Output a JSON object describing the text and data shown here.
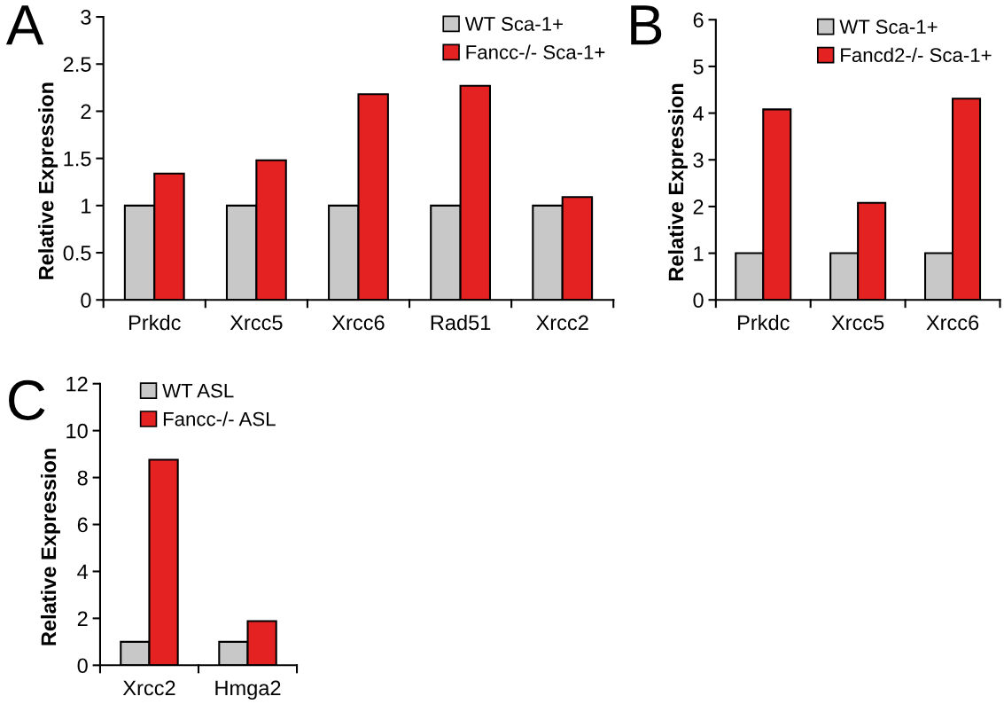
{
  "chart_data": [
    {
      "type": "bar",
      "ylabel": "Relative Expression",
      "annotations": [
        "A"
      ],
      "categories": [
        "Prkdc",
        "Xrcc5",
        "Xrcc6",
        "Rad51",
        "Xrcc2"
      ],
      "series": [
        {
          "name": "WT Sca-1+",
          "color": "#c8c8c8",
          "values": [
            1,
            1,
            1,
            1,
            1
          ]
        },
        {
          "name": "Fancc-/- Sca-1+",
          "color": "#e52222",
          "values": [
            1.34,
            1.48,
            2.18,
            2.27,
            1.09
          ]
        }
      ],
      "ylim": [
        0,
        3
      ],
      "yticks": [
        0,
        0.5,
        1,
        1.5,
        2,
        2.5,
        3
      ],
      "legend": "top right"
    },
    {
      "type": "bar",
      "ylabel": "Relative Expression",
      "annotations": [
        "B"
      ],
      "categories": [
        "Prkdc",
        "Xrcc5",
        "Xrcc6"
      ],
      "series": [
        {
          "name": "WT Sca-1+",
          "color": "#c8c8c8",
          "values": [
            1,
            1,
            1
          ]
        },
        {
          "name": "Fancd2-/- Sca-1+",
          "color": "#e52222",
          "values": [
            4.08,
            2.08,
            4.31
          ]
        }
      ],
      "ylim": [
        0,
        6
      ],
      "yticks": [
        0,
        1,
        2,
        3,
        4,
        5,
        6
      ],
      "legend": "top right"
    },
    {
      "type": "bar",
      "ylabel": "Relative Expression",
      "annotations": [
        "C"
      ],
      "categories": [
        "Xrcc2",
        "Hmga2"
      ],
      "series": [
        {
          "name": "WT ASL",
          "color": "#c8c8c8",
          "values": [
            1,
            1
          ]
        },
        {
          "name": "Fancc-/- ASL",
          "color": "#e52222",
          "values": [
            8.76,
            1.88
          ]
        }
      ],
      "ylim": [
        0,
        12
      ],
      "yticks": [
        0,
        2,
        4,
        6,
        8,
        10,
        12
      ],
      "legend": "top"
    }
  ]
}
